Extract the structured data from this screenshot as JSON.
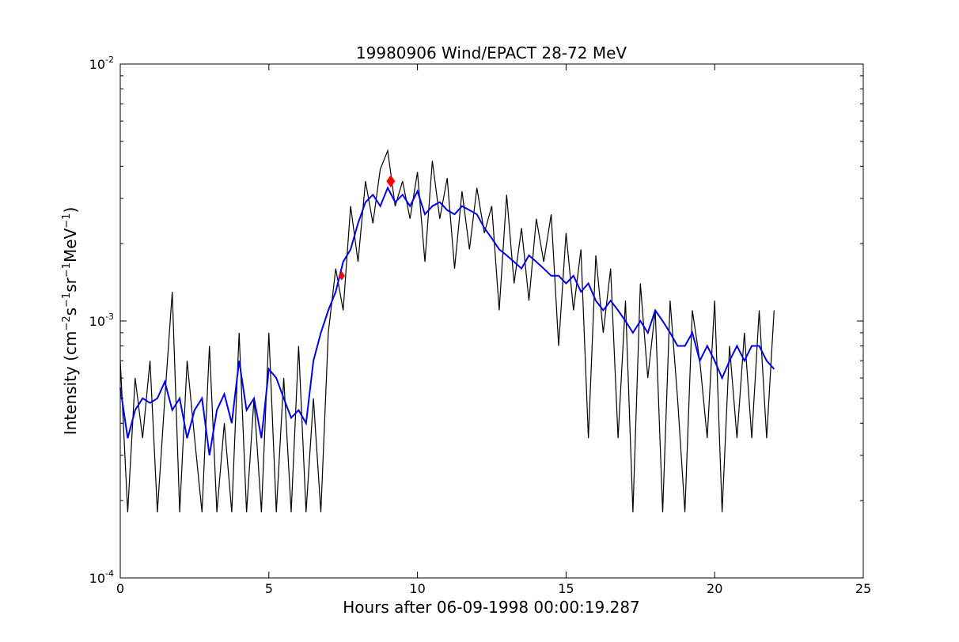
{
  "chart_data": {
    "type": "line",
    "title": "19980906 Wind/EPACT 28-72 MeV",
    "xlabel": "Hours after 06-09-1998 00:00:19.287",
    "ylabel": "Intensity (cm⁻²s⁻¹sr⁻¹MeV⁻¹)",
    "ylabel_parts": {
      "pre": "Intensity (cm",
      "e1": "−2",
      "m1": "s",
      "e2": "−1",
      "m2": "sr",
      "e3": "−1",
      "m3": "MeV",
      "e4": "−1",
      "post": ")"
    },
    "xlim": [
      0,
      25
    ],
    "ylim": [
      0.0001,
      0.01
    ],
    "yscale": "log",
    "grid": false,
    "x_ticks": [
      0,
      5,
      10,
      15,
      20,
      25
    ],
    "x_tick_labels": [
      "0",
      "5",
      "10",
      "15",
      "20",
      "25"
    ],
    "y_ticks": [
      {
        "value": 0.0001,
        "base": "10",
        "exp": "-4"
      },
      {
        "value": 0.001,
        "base": "10",
        "exp": "-3"
      },
      {
        "value": 0.01,
        "base": "10",
        "exp": "-2"
      }
    ],
    "series": [
      {
        "role": "raw",
        "color": "#000000",
        "x": [
          0.0,
          0.25,
          0.5,
          0.75,
          1.0,
          1.25,
          1.5,
          1.75,
          2.0,
          2.25,
          2.5,
          2.75,
          3.0,
          3.25,
          3.5,
          3.75,
          4.0,
          4.25,
          4.5,
          4.75,
          5.0,
          5.25,
          5.5,
          5.75,
          6.0,
          6.25,
          6.5,
          6.75,
          7.0,
          7.25,
          7.5,
          7.75,
          8.0,
          8.25,
          8.5,
          8.75,
          9.0,
          9.25,
          9.5,
          9.75,
          10.0,
          10.25,
          10.5,
          10.75,
          11.0,
          11.25,
          11.5,
          11.75,
          12.0,
          12.25,
          12.5,
          12.75,
          13.0,
          13.25,
          13.5,
          13.75,
          14.0,
          14.25,
          14.5,
          14.75,
          15.0,
          15.25,
          15.5,
          15.75,
          16.0,
          16.25,
          16.5,
          16.75,
          17.0,
          17.25,
          17.5,
          17.75,
          18.0,
          18.25,
          18.5,
          18.75,
          19.0,
          19.25,
          19.5,
          19.75,
          20.0,
          20.25,
          20.5,
          20.75,
          21.0,
          21.25,
          21.5,
          21.75,
          22.0
        ],
        "y": [
          0.0007,
          0.00018,
          0.0006,
          0.00035,
          0.0007,
          0.00018,
          0.0005,
          0.0013,
          0.00018,
          0.0007,
          0.00035,
          0.00018,
          0.0008,
          0.00018,
          0.0004,
          0.00018,
          0.0009,
          0.00018,
          0.0005,
          0.00018,
          0.0009,
          0.00018,
          0.0006,
          0.00018,
          0.0008,
          0.00018,
          0.0005,
          0.00018,
          0.0009,
          0.0016,
          0.0011,
          0.0028,
          0.0017,
          0.0035,
          0.0024,
          0.0039,
          0.0046,
          0.0028,
          0.0035,
          0.0025,
          0.0038,
          0.0017,
          0.0042,
          0.0025,
          0.0036,
          0.0016,
          0.0032,
          0.0019,
          0.0033,
          0.0022,
          0.0028,
          0.0011,
          0.0031,
          0.0014,
          0.0023,
          0.0012,
          0.0025,
          0.0017,
          0.0026,
          0.0008,
          0.0022,
          0.0011,
          0.0019,
          0.00035,
          0.0018,
          0.0009,
          0.0016,
          0.00035,
          0.0012,
          0.00018,
          0.0014,
          0.0006,
          0.0011,
          0.00018,
          0.0012,
          0.0005,
          0.00018,
          0.0011,
          0.0007,
          0.00035,
          0.0012,
          0.00018,
          0.0008,
          0.00035,
          0.0009,
          0.00035,
          0.0011,
          0.00035,
          0.0011
        ]
      },
      {
        "role": "smoothed",
        "color": "#0000ff",
        "x": [
          0.0,
          0.25,
          0.5,
          0.75,
          1.0,
          1.25,
          1.5,
          1.75,
          2.0,
          2.25,
          2.5,
          2.75,
          3.0,
          3.25,
          3.5,
          3.75,
          4.0,
          4.25,
          4.5,
          4.75,
          5.0,
          5.25,
          5.5,
          5.75,
          6.0,
          6.25,
          6.5,
          6.75,
          7.0,
          7.25,
          7.5,
          7.75,
          8.0,
          8.25,
          8.5,
          8.75,
          9.0,
          9.25,
          9.5,
          9.75,
          10.0,
          10.25,
          10.5,
          10.75,
          11.0,
          11.25,
          11.5,
          11.75,
          12.0,
          12.25,
          12.5,
          12.75,
          13.0,
          13.25,
          13.5,
          13.75,
          14.0,
          14.25,
          14.5,
          14.75,
          15.0,
          15.25,
          15.5,
          15.75,
          16.0,
          16.25,
          16.5,
          16.75,
          17.0,
          17.25,
          17.5,
          17.75,
          18.0,
          18.25,
          18.5,
          18.75,
          19.0,
          19.25,
          19.5,
          19.75,
          20.0,
          20.25,
          20.5,
          20.75,
          21.0,
          21.25,
          21.5,
          21.75,
          22.0
        ],
        "y": [
          0.00055,
          0.00035,
          0.00045,
          0.0005,
          0.00048,
          0.0005,
          0.00058,
          0.00045,
          0.0005,
          0.00035,
          0.00045,
          0.0005,
          0.0003,
          0.00045,
          0.00052,
          0.0004,
          0.0007,
          0.00045,
          0.0005,
          0.00035,
          0.00065,
          0.0006,
          0.0005,
          0.00042,
          0.00045,
          0.0004,
          0.0007,
          0.0009,
          0.0011,
          0.0013,
          0.0017,
          0.0019,
          0.0024,
          0.0029,
          0.0031,
          0.0028,
          0.0033,
          0.0029,
          0.0031,
          0.0028,
          0.0032,
          0.0026,
          0.0028,
          0.0029,
          0.0027,
          0.0026,
          0.0028,
          0.0027,
          0.0026,
          0.0023,
          0.0021,
          0.0019,
          0.0018,
          0.0017,
          0.0016,
          0.0018,
          0.0017,
          0.0016,
          0.0015,
          0.0015,
          0.0014,
          0.0015,
          0.0013,
          0.0014,
          0.0012,
          0.0011,
          0.0012,
          0.0011,
          0.001,
          0.0009,
          0.001,
          0.0009,
          0.0011,
          0.001,
          0.0009,
          0.0008,
          0.0008,
          0.0009,
          0.0007,
          0.0008,
          0.0007,
          0.0006,
          0.0007,
          0.0008,
          0.0007,
          0.0008,
          0.0008,
          0.0007,
          0.00065
        ]
      }
    ],
    "markers": [
      {
        "x": 7.45,
        "y": 0.0015,
        "color": "#ff0000",
        "shape": "diamond"
      },
      {
        "x": 9.1,
        "y": 0.0035,
        "color": "#ff0000",
        "shape": "diamond"
      }
    ]
  }
}
